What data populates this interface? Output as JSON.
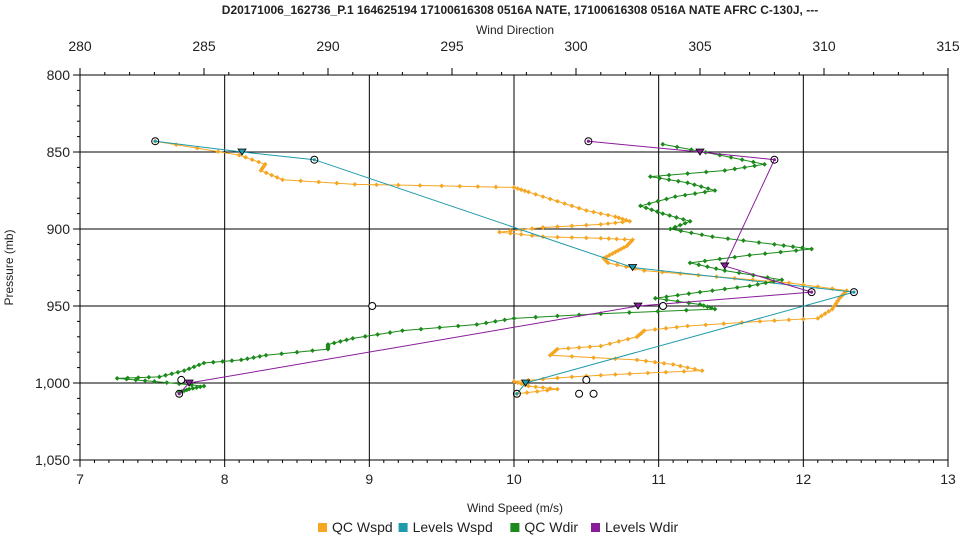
{
  "chart_data": {
    "type": "line",
    "title": "D20171006_162736_P.1 164625194 17100616308 0516A NATE, 17100616308 0516A NATE AFRC C-130J, ---",
    "xlabel_bottom": "Wind Speed (m/s)",
    "xlabel_top": "Wind Direction",
    "ylabel": "Pressure (mb)",
    "xlim_bottom": [
      7,
      13
    ],
    "xlim_top": [
      280,
      315
    ],
    "ylim": [
      800,
      1050
    ],
    "y_inverted": true,
    "grid": true,
    "legend_position": "bottom",
    "bottom_ticks": [
      "7",
      "8",
      "9",
      "10",
      "11",
      "12",
      "13"
    ],
    "top_ticks": [
      "280",
      "285",
      "290",
      "295",
      "300",
      "305",
      "310",
      "315"
    ],
    "y_ticks": [
      "800",
      "850",
      "900",
      "950",
      "1,000",
      "1,050"
    ],
    "colors": {
      "qc_wspd": "#f5a623",
      "levels_wspd": "#1e9bab",
      "qc_wdir": "#1b8a1b",
      "levels_wdir": "#8a1b9b"
    },
    "series": [
      {
        "name": "QC Wspd",
        "axis": "bottom",
        "color": "#f5a623",
        "points": [
          [
            7.52,
            843
          ],
          [
            8.1,
            852
          ],
          [
            8.28,
            858
          ],
          [
            8.25,
            862
          ],
          [
            8.4,
            868
          ],
          [
            8.9,
            871
          ],
          [
            9.5,
            872
          ],
          [
            10.0,
            873
          ],
          [
            10.1,
            876
          ],
          [
            10.3,
            882
          ],
          [
            10.5,
            888
          ],
          [
            10.7,
            892
          ],
          [
            10.8,
            895
          ],
          [
            10.6,
            897
          ],
          [
            10.2,
            899
          ],
          [
            9.9,
            902
          ],
          [
            10.2,
            905
          ],
          [
            10.6,
            906
          ],
          [
            10.82,
            907
          ],
          [
            10.78,
            911
          ],
          [
            10.7,
            915
          ],
          [
            10.62,
            919
          ],
          [
            10.65,
            922
          ],
          [
            10.9,
            927
          ],
          [
            11.4,
            931
          ],
          [
            11.9,
            935
          ],
          [
            12.3,
            940
          ],
          [
            12.25,
            945
          ],
          [
            12.2,
            952
          ],
          [
            12.1,
            958
          ],
          [
            11.7,
            960
          ],
          [
            11.2,
            963
          ],
          [
            10.9,
            966
          ],
          [
            10.85,
            970
          ],
          [
            10.6,
            976
          ],
          [
            10.3,
            978
          ],
          [
            10.25,
            982
          ],
          [
            10.85,
            985
          ],
          [
            11.1,
            988
          ],
          [
            11.3,
            992
          ],
          [
            10.8,
            994
          ],
          [
            10.4,
            996
          ],
          [
            10.0,
            999
          ],
          [
            10.1,
            1002
          ],
          [
            10.3,
            1004
          ],
          [
            10.02,
            1007
          ]
        ]
      },
      {
        "name": "Levels Wspd",
        "axis": "bottom",
        "color": "#1e9bab",
        "points": [
          [
            7.52,
            843
          ],
          [
            8.12,
            850
          ],
          [
            8.62,
            855
          ],
          [
            10.82,
            925
          ],
          [
            12.35,
            941
          ],
          [
            10.08,
            1000
          ],
          [
            10.02,
            1007
          ]
        ]
      },
      {
        "name": "QC Wdir",
        "axis": "top",
        "color": "#1b8a1b",
        "points": [
          [
            303.5,
            845
          ],
          [
            305.8,
            852
          ],
          [
            307.6,
            858
          ],
          [
            306.0,
            862
          ],
          [
            303.0,
            866
          ],
          [
            304.5,
            870
          ],
          [
            305.6,
            875
          ],
          [
            304.0,
            879
          ],
          [
            302.6,
            885
          ],
          [
            303.5,
            890
          ],
          [
            304.6,
            895
          ],
          [
            303.8,
            900
          ],
          [
            305.5,
            905
          ],
          [
            308.0,
            910
          ],
          [
            309.5,
            913
          ],
          [
            307.0,
            917
          ],
          [
            304.6,
            922
          ],
          [
            306.0,
            927
          ],
          [
            308.3,
            933
          ],
          [
            307.0,
            937
          ],
          [
            305.0,
            941
          ],
          [
            303.2,
            945
          ],
          [
            305.0,
            949
          ],
          [
            305.6,
            952
          ],
          [
            301.0,
            955
          ],
          [
            297.5,
            958
          ],
          [
            296.0,
            962
          ],
          [
            293.0,
            966
          ],
          [
            291.0,
            971
          ],
          [
            290.0,
            975
          ],
          [
            290.0,
            978
          ],
          [
            287.5,
            982
          ],
          [
            286.5,
            985
          ],
          [
            285.0,
            987
          ],
          [
            284.2,
            992
          ],
          [
            283.2,
            996
          ],
          [
            281.5,
            997
          ],
          [
            283.0,
            999
          ],
          [
            285.0,
            1002
          ],
          [
            284.4,
            1004
          ],
          [
            284.0,
            1006
          ]
        ]
      },
      {
        "name": "Levels Wdir",
        "axis": "top",
        "color": "#8a1b9b",
        "points": [
          [
            300.5,
            843
          ],
          [
            305.0,
            850
          ],
          [
            308.0,
            855
          ],
          [
            306.0,
            924
          ],
          [
            309.5,
            941
          ],
          [
            302.5,
            950
          ],
          [
            284.4,
            1000
          ],
          [
            284.0,
            1007
          ]
        ]
      }
    ],
    "open_markers": [
      [
        9.02,
        950
      ],
      [
        7.7,
        998
      ],
      [
        10.5,
        998
      ],
      [
        10.45,
        1007
      ],
      [
        10.55,
        1007
      ],
      [
        11.03,
        950
      ]
    ]
  }
}
